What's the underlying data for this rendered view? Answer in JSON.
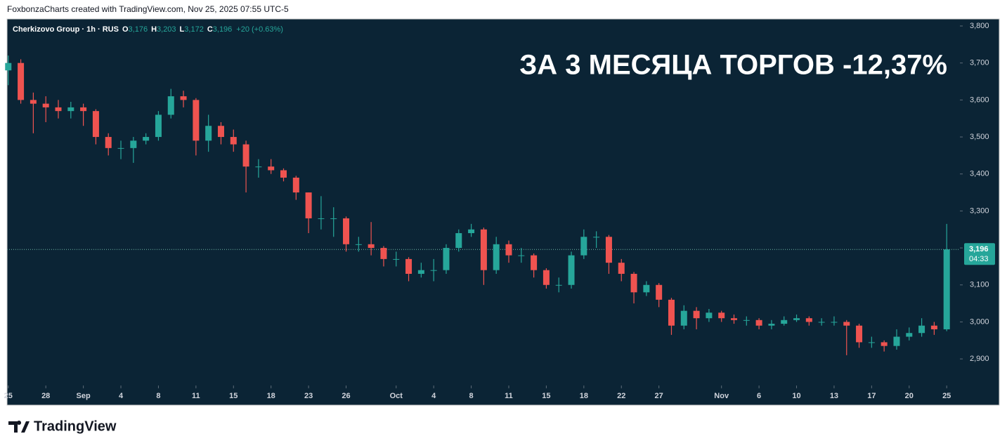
{
  "header": "FoxbonzaCharts created with TradingView.com, Nov 25, 2025 07:55 UTC-5",
  "footer": "TradingView",
  "chart_data": {
    "type": "candlestick",
    "symbol": "Cherkizovo Group · 1h · RUS",
    "legend_fields": [
      {
        "key": "O",
        "value": "3,176"
      },
      {
        "key": "H",
        "value": "3,203"
      },
      {
        "key": "L",
        "value": "3,172"
      },
      {
        "key": "C",
        "value": "3,196"
      }
    ],
    "change": "+20 (+0.63%)",
    "annotation": "ЗА 3 МЕСЯЦА ТОРГОВ -12,37%",
    "last_price": {
      "value": 3196,
      "label": "3,196"
    },
    "countdown": "04:33",
    "up_color": "#26a69a",
    "down_color": "#ef5350",
    "xlim": [
      -0.1,
      76
    ],
    "ylim": [
      2830,
      3819
    ],
    "xticks": [
      {
        "value": 0,
        "label": "25"
      },
      {
        "value": 3,
        "label": "28"
      },
      {
        "value": 6,
        "label": "Sep"
      },
      {
        "value": 9,
        "label": "4"
      },
      {
        "value": 12,
        "label": "8"
      },
      {
        "value": 15,
        "label": "11"
      },
      {
        "value": 18,
        "label": "15"
      },
      {
        "value": 21,
        "label": "18"
      },
      {
        "value": 24,
        "label": "23"
      },
      {
        "value": 27,
        "label": "26"
      },
      {
        "value": 31,
        "label": "Oct"
      },
      {
        "value": 34,
        "label": "4"
      },
      {
        "value": 37,
        "label": "8"
      },
      {
        "value": 40,
        "label": "11"
      },
      {
        "value": 43,
        "label": "15"
      },
      {
        "value": 46,
        "label": "18"
      },
      {
        "value": 49,
        "label": "22"
      },
      {
        "value": 52,
        "label": "27"
      },
      {
        "value": 57,
        "label": "Nov"
      },
      {
        "value": 60,
        "label": "6"
      },
      {
        "value": 63,
        "label": "10"
      },
      {
        "value": 66,
        "label": "13"
      },
      {
        "value": 69,
        "label": "17"
      },
      {
        "value": 72,
        "label": "20"
      },
      {
        "value": 75,
        "label": "25"
      }
    ],
    "yticks": [
      {
        "value": 2900,
        "label": "2,900"
      },
      {
        "value": 3000,
        "label": "3,000"
      },
      {
        "value": 3100,
        "label": "3,100"
      },
      {
        "value": 3200,
        "label": "3,200"
      },
      {
        "value": 3300,
        "label": "3,300"
      },
      {
        "value": 3400,
        "label": "3,400"
      },
      {
        "value": 3500,
        "label": "3,500"
      },
      {
        "value": 3600,
        "label": "3,600"
      },
      {
        "value": 3700,
        "label": "3,700"
      },
      {
        "value": 3800,
        "label": "3,800"
      }
    ],
    "x": [
      0,
      1,
      2,
      3,
      4,
      5,
      6,
      7,
      8,
      9,
      10,
      11,
      12,
      13,
      14,
      15,
      16,
      17,
      18,
      19,
      20,
      21,
      22,
      23,
      24,
      25,
      26,
      27,
      28,
      29,
      30,
      31,
      32,
      33,
      34,
      35,
      36,
      37,
      38,
      39,
      40,
      41,
      42,
      43,
      44,
      45,
      46,
      47,
      48,
      49,
      50,
      51,
      52,
      53,
      54,
      55,
      56,
      57,
      58,
      59,
      60,
      61,
      62,
      63,
      64,
      65,
      66,
      67,
      68,
      69,
      70,
      71,
      72,
      73,
      74,
      75
    ],
    "ohlc": [
      [
        3680,
        3720,
        3640,
        3700
      ],
      [
        3700,
        3710,
        3590,
        3600
      ],
      [
        3600,
        3620,
        3510,
        3590
      ],
      [
        3590,
        3610,
        3540,
        3580
      ],
      [
        3580,
        3600,
        3550,
        3570
      ],
      [
        3570,
        3595,
        3550,
        3580
      ],
      [
        3580,
        3590,
        3530,
        3570
      ],
      [
        3570,
        3575,
        3480,
        3500
      ],
      [
        3500,
        3510,
        3450,
        3470
      ],
      [
        3470,
        3490,
        3440,
        3470
      ],
      [
        3470,
        3500,
        3430,
        3490
      ],
      [
        3490,
        3510,
        3480,
        3500
      ],
      [
        3500,
        3570,
        3490,
        3560
      ],
      [
        3560,
        3630,
        3550,
        3610
      ],
      [
        3610,
        3625,
        3580,
        3600
      ],
      [
        3600,
        3605,
        3450,
        3490
      ],
      [
        3490,
        3560,
        3460,
        3530
      ],
      [
        3530,
        3540,
        3480,
        3500
      ],
      [
        3500,
        3520,
        3460,
        3480
      ],
      [
        3480,
        3490,
        3350,
        3420
      ],
      [
        3420,
        3440,
        3390,
        3420
      ],
      [
        3420,
        3440,
        3400,
        3410
      ],
      [
        3410,
        3415,
        3380,
        3390
      ],
      [
        3390,
        3395,
        3330,
        3350
      ],
      [
        3350,
        3350,
        3240,
        3280
      ],
      [
        3280,
        3340,
        3250,
        3280
      ],
      [
        3280,
        3310,
        3230,
        3280
      ],
      [
        3280,
        3285,
        3190,
        3210
      ],
      [
        3210,
        3230,
        3190,
        3210
      ],
      [
        3210,
        3270,
        3180,
        3200
      ],
      [
        3200,
        3205,
        3150,
        3170
      ],
      [
        3170,
        3190,
        3150,
        3170
      ],
      [
        3170,
        3175,
        3110,
        3130
      ],
      [
        3130,
        3160,
        3120,
        3140
      ],
      [
        3140,
        3170,
        3110,
        3140
      ],
      [
        3140,
        3210,
        3130,
        3200
      ],
      [
        3200,
        3250,
        3190,
        3240
      ],
      [
        3240,
        3265,
        3230,
        3250
      ],
      [
        3250,
        3255,
        3100,
        3140
      ],
      [
        3140,
        3230,
        3130,
        3210
      ],
      [
        3210,
        3220,
        3160,
        3180
      ],
      [
        3180,
        3200,
        3160,
        3180
      ],
      [
        3180,
        3185,
        3120,
        3140
      ],
      [
        3140,
        3145,
        3090,
        3100
      ],
      [
        3100,
        3120,
        3080,
        3100
      ],
      [
        3100,
        3190,
        3090,
        3180
      ],
      [
        3180,
        3250,
        3170,
        3230
      ],
      [
        3230,
        3245,
        3200,
        3230
      ],
      [
        3230,
        3235,
        3130,
        3160
      ],
      [
        3160,
        3170,
        3110,
        3130
      ],
      [
        3130,
        3135,
        3050,
        3080
      ],
      [
        3080,
        3110,
        3070,
        3100
      ],
      [
        3100,
        3105,
        3040,
        3060
      ],
      [
        3060,
        3065,
        2965,
        2990
      ],
      [
        2990,
        3045,
        2980,
        3030
      ],
      [
        3030,
        3040,
        2980,
        3010
      ],
      [
        3010,
        3035,
        3000,
        3025
      ],
      [
        3025,
        3030,
        3000,
        3010
      ],
      [
        3010,
        3020,
        2995,
        3005
      ],
      [
        3005,
        3015,
        2990,
        3005
      ],
      [
        3005,
        3010,
        2980,
        2990
      ],
      [
        2990,
        3005,
        2980,
        2995
      ],
      [
        2995,
        3015,
        2990,
        3005
      ],
      [
        3005,
        3020,
        3000,
        3010
      ],
      [
        3010,
        3015,
        2990,
        3000
      ],
      [
        3000,
        3010,
        2990,
        3000
      ],
      [
        3000,
        3015,
        2990,
        3000
      ],
      [
        3000,
        3005,
        2910,
        2990
      ],
      [
        2990,
        2995,
        2930,
        2945
      ],
      [
        2945,
        2960,
        2930,
        2945
      ],
      [
        2945,
        2950,
        2920,
        2935
      ],
      [
        2935,
        2980,
        2925,
        2960
      ],
      [
        2960,
        2985,
        2950,
        2970
      ],
      [
        2970,
        3010,
        2960,
        2990
      ],
      [
        2990,
        3000,
        2965,
        2980
      ],
      [
        2980,
        3265,
        2975,
        3196
      ]
    ]
  }
}
